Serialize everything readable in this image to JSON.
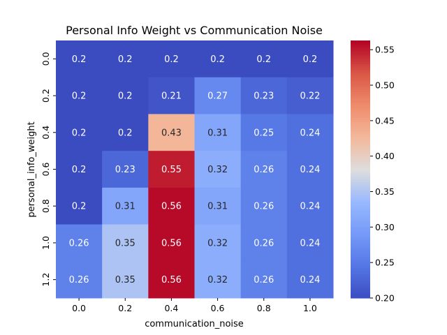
{
  "chart_data": {
    "type": "heatmap",
    "title": "Personal Info Weight vs Communication Noise",
    "xlabel": "communication_noise",
    "ylabel": "personal_info_weight",
    "x_categories": [
      "0.0",
      "0.2",
      "0.4",
      "0.6",
      "0.8",
      "1.0"
    ],
    "y_categories": [
      "0.0",
      "0.2",
      "0.4",
      "0.6",
      "0.8",
      "1.0",
      "1.2"
    ],
    "values": [
      [
        0.2,
        0.2,
        0.2,
        0.2,
        0.2,
        0.2
      ],
      [
        0.2,
        0.2,
        0.21,
        0.27,
        0.23,
        0.22
      ],
      [
        0.2,
        0.2,
        0.43,
        0.31,
        0.25,
        0.24
      ],
      [
        0.2,
        0.23,
        0.55,
        0.32,
        0.26,
        0.24
      ],
      [
        0.2,
        0.31,
        0.56,
        0.31,
        0.26,
        0.24
      ],
      [
        0.26,
        0.35,
        0.56,
        0.32,
        0.26,
        0.24
      ],
      [
        0.26,
        0.35,
        0.56,
        0.32,
        0.26,
        0.24
      ]
    ],
    "vmin": 0.2,
    "vmax": 0.563,
    "colormap": "coolwarm",
    "colorbar_ticks": [
      "0.20",
      "0.25",
      "0.30",
      "0.35",
      "0.40",
      "0.45",
      "0.50",
      "0.55"
    ]
  }
}
